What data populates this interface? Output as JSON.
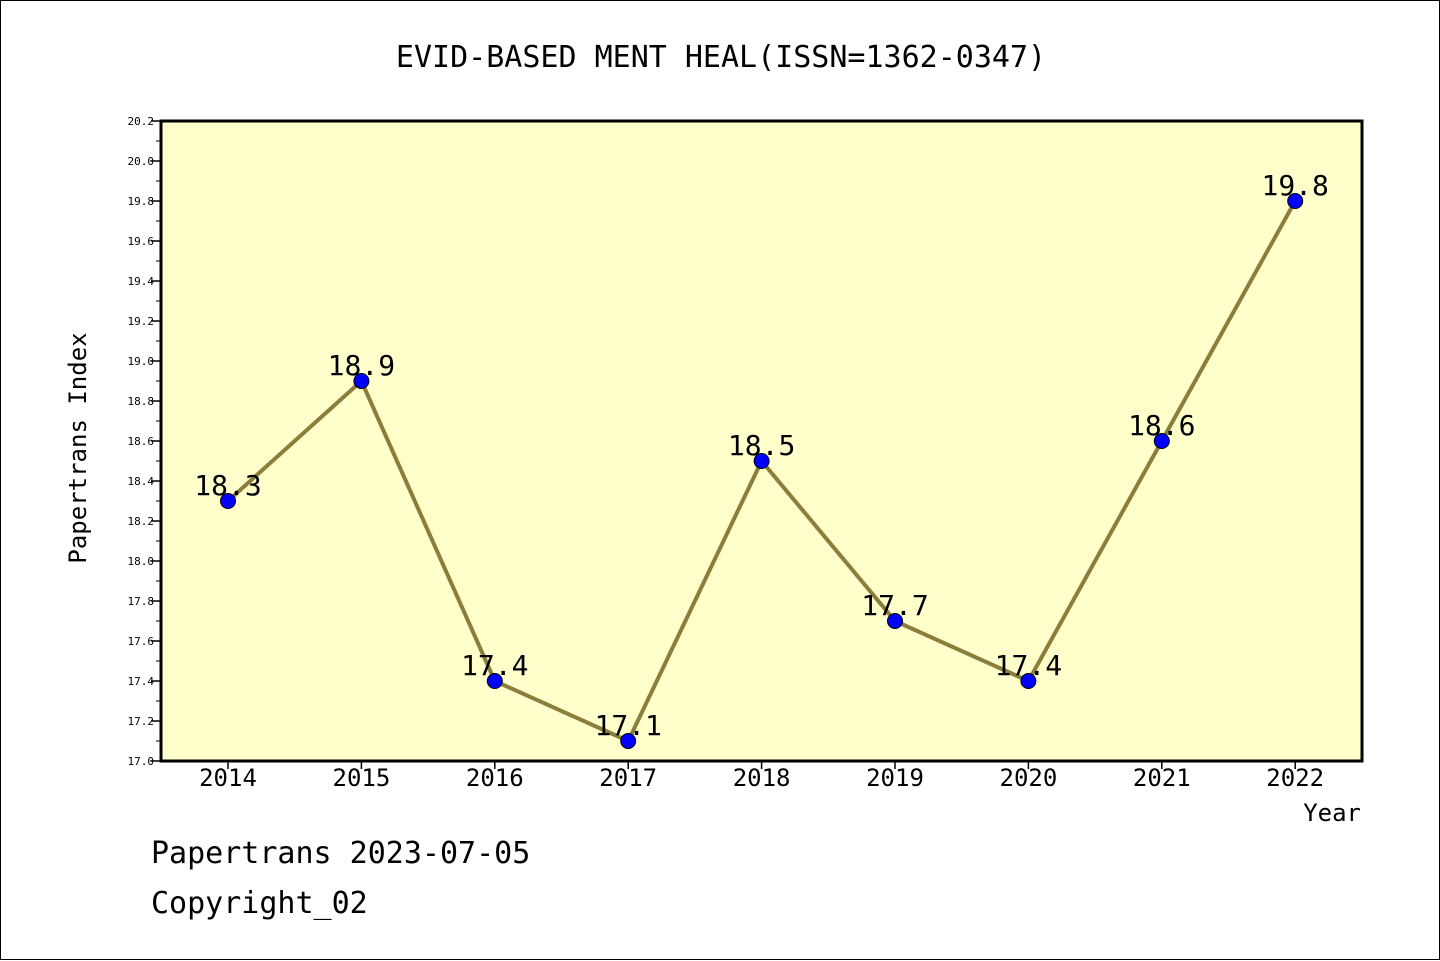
{
  "chart_data": {
    "type": "line",
    "title": "EVID-BASED MENT HEAL(ISSN=1362-0347)",
    "xlabel": "Year",
    "ylabel": "Papertrans Index",
    "categories": [
      "2014",
      "2015",
      "2016",
      "2017",
      "2018",
      "2019",
      "2020",
      "2021",
      "2022"
    ],
    "series": [
      {
        "values": [
          18.3,
          18.9,
          17.4,
          17.1,
          18.5,
          17.7,
          17.4,
          18.6,
          19.8
        ]
      }
    ],
    "data_labels": [
      "18.3",
      "18.9",
      "17.4",
      "17.1",
      "18.5",
      "17.7",
      "17.4",
      "18.6",
      "19.8"
    ],
    "ylim": [
      17.0,
      20.2
    ],
    "y_ticks": [
      "17.0",
      "17.2",
      "17.4",
      "17.6",
      "17.8",
      "18.0",
      "18.2",
      "18.4",
      "18.6",
      "18.8",
      "19.0",
      "19.2",
      "19.4",
      "19.6",
      "19.8",
      "20.0",
      "20.2"
    ],
    "grid": false,
    "legend": "none",
    "colors": {
      "plot_background": "#ffffcc",
      "line": "#8b7d3a",
      "marker": "#0000ff"
    }
  },
  "footer": {
    "line1": "Papertrans 2023-07-05",
    "line2": "Copyright_02"
  }
}
